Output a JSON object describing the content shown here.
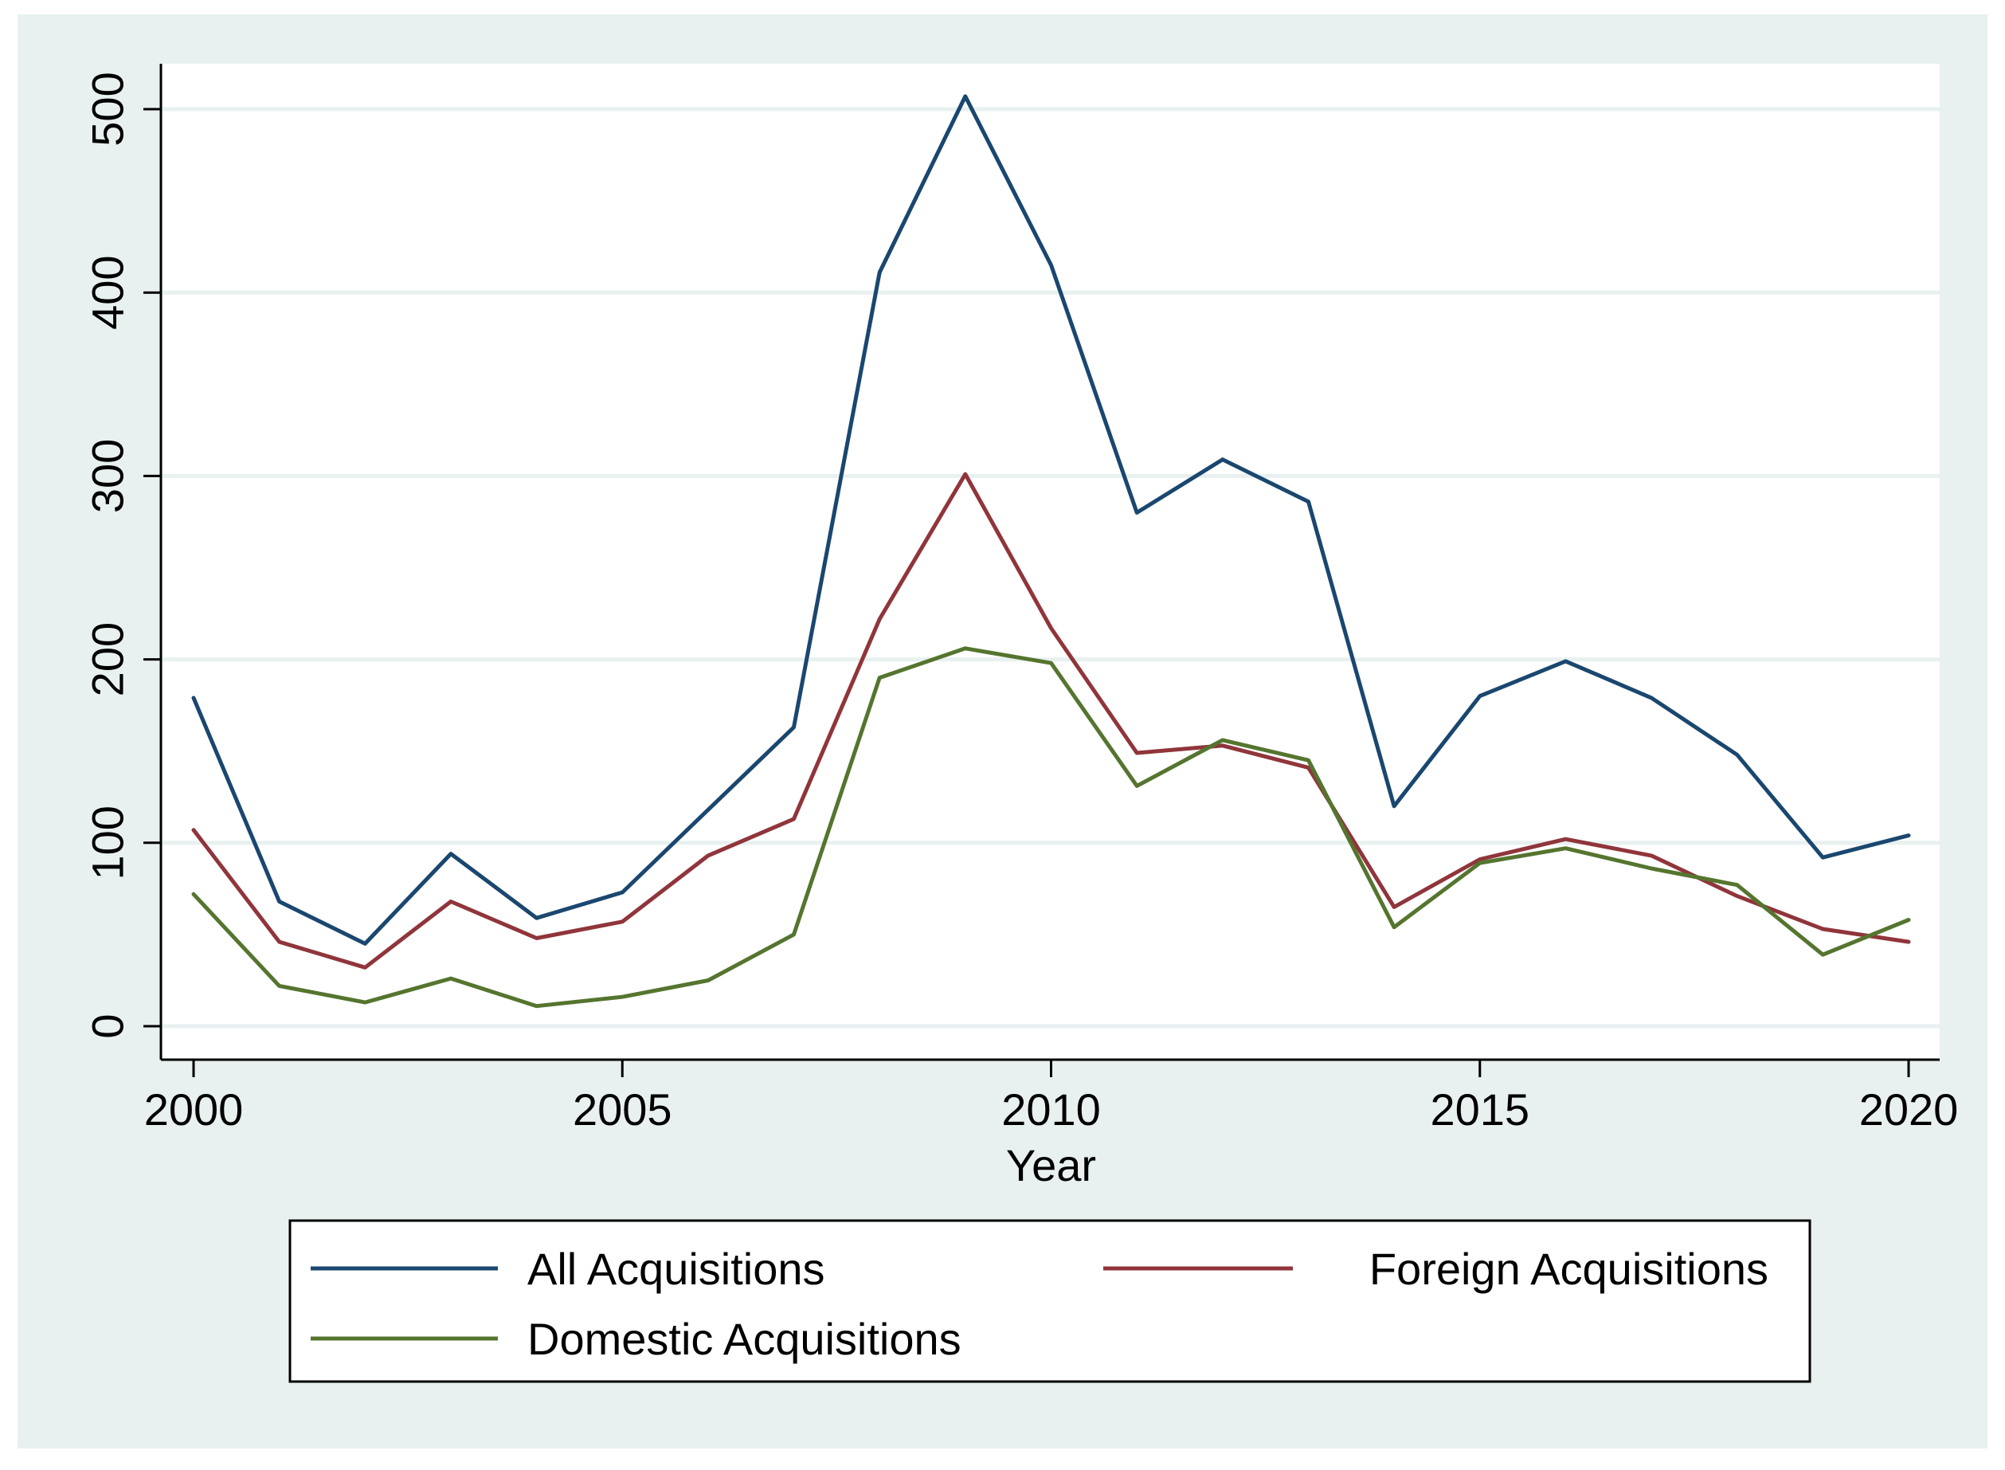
{
  "chart_data": {
    "type": "line",
    "title": "",
    "xlabel": "Year",
    "ylabel": "",
    "xlim": [
      2000,
      2020
    ],
    "ylim": [
      0,
      500
    ],
    "xticks": [
      2000,
      2005,
      2010,
      2015,
      2020
    ],
    "yticks": [
      0,
      100,
      200,
      300,
      400,
      500
    ],
    "grid": true,
    "legend_position": "bottom",
    "x": [
      2000,
      2001,
      2002,
      2003,
      2004,
      2005,
      2006,
      2007,
      2008,
      2009,
      2010,
      2011,
      2012,
      2013,
      2014,
      2015,
      2016,
      2017,
      2018,
      2019,
      2020
    ],
    "series": [
      {
        "name": "All Acquisitions",
        "color": "#1a476f",
        "values": [
          179,
          68,
          45,
          94,
          59,
          73,
          118,
          163,
          411,
          507,
          415,
          280,
          309,
          286,
          120,
          180,
          199,
          179,
          148,
          92,
          104
        ]
      },
      {
        "name": "Foreign Acquisitions",
        "color": "#90353b",
        "values": [
          107,
          46,
          32,
          68,
          48,
          57,
          93,
          113,
          222,
          301,
          217,
          149,
          153,
          141,
          65,
          91,
          102,
          93,
          71,
          53,
          46
        ]
      },
      {
        "name": "Domestic Acquisitions",
        "color": "#55752f",
        "values": [
          72,
          22,
          13,
          26,
          11,
          16,
          25,
          50,
          190,
          206,
          198,
          131,
          156,
          145,
          54,
          89,
          97,
          86,
          77,
          39,
          58
        ]
      }
    ]
  },
  "style": {
    "outer_background": "#e8f0f0",
    "plot_background": "#ffffff",
    "grid_color": "#e8f0f0"
  }
}
